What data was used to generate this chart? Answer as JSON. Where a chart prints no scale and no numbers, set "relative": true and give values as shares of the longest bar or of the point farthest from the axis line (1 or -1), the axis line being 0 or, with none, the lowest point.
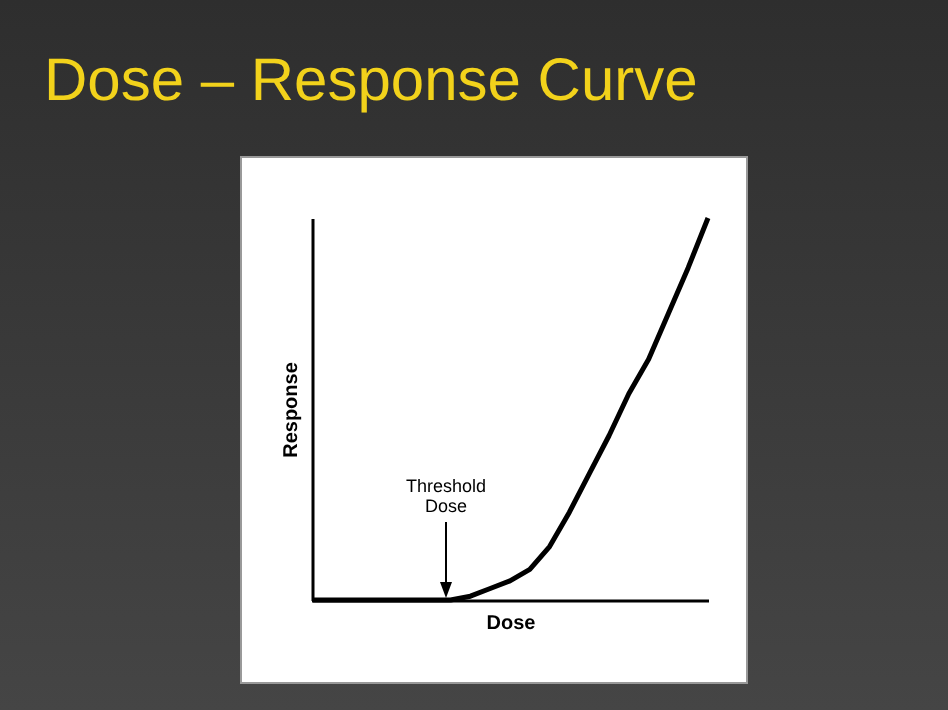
{
  "chart_data": {
    "type": "line",
    "title": "Dose – Response Curve",
    "xlabel": "Dose",
    "ylabel": "Response",
    "relative": true,
    "categories": [
      null,
      null,
      null,
      null,
      null,
      null,
      null,
      null,
      null,
      null,
      null,
      null,
      null,
      null,
      null,
      null,
      null,
      null,
      null,
      null,
      null
    ],
    "series": [
      {
        "color": "#000000",
        "values": [
          0,
          0,
          0,
          0,
          0,
          0,
          0,
          0,
          0.01,
          0.03,
          0.05,
          0.08,
          0.14,
          0.23,
          0.33,
          0.43,
          0.54,
          0.63,
          0.75,
          0.87,
          1
        ]
      }
    ],
    "annotations": [
      "Threshold Dose"
    ],
    "marker": "none",
    "grid": false,
    "legend": false
  }
}
